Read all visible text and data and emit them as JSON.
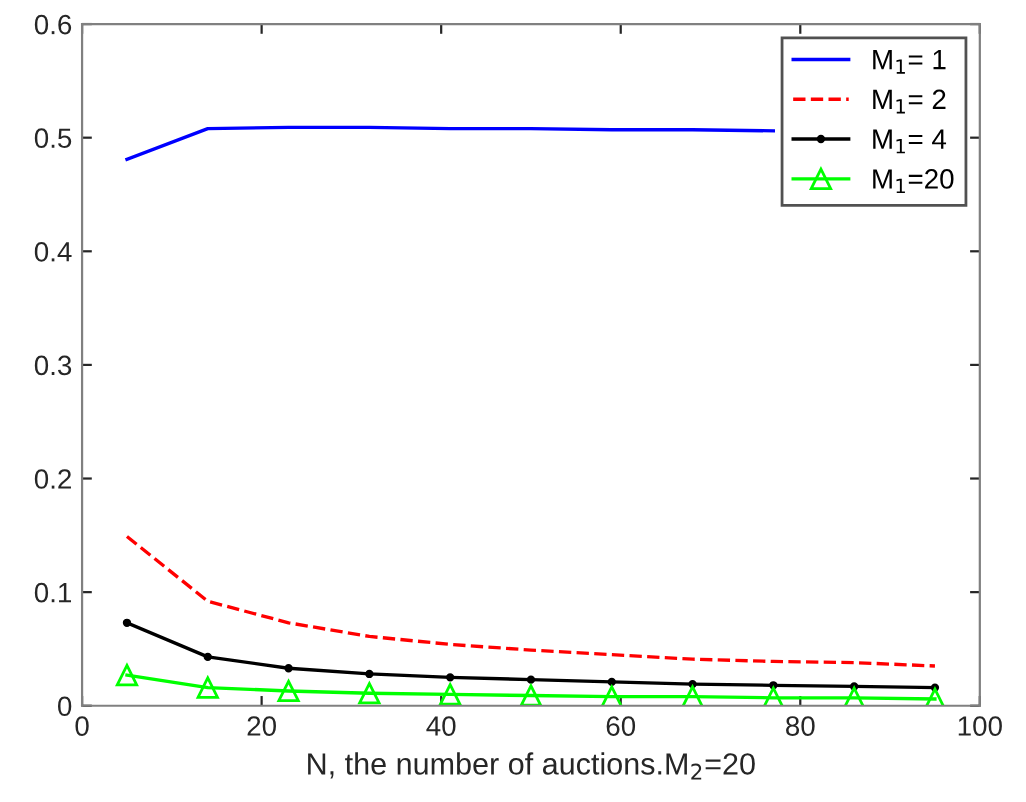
{
  "chart_data": {
    "type": "line",
    "xlabel": "N, the number of auctions.M$_{2}$=20",
    "x": [
      5,
      14,
      23,
      32,
      41,
      50,
      59,
      68,
      77,
      86,
      95
    ],
    "xlim": [
      0,
      100
    ],
    "xticks": [
      0,
      20,
      40,
      60,
      80,
      100
    ],
    "ylim": [
      0,
      0.6
    ],
    "yticks": [
      0,
      0.1,
      0.2,
      0.3,
      0.4,
      0.5,
      0.6
    ],
    "grid": false,
    "legend": "top right",
    "series": [
      {
        "name": "M$_{1}$= 1",
        "color": "#0000ff",
        "line_style": "solid",
        "marker": "none",
        "values": [
          0.481,
          0.508,
          0.509,
          0.509,
          0.508,
          0.508,
          0.507,
          0.507,
          0.506,
          null,
          null
        ]
      },
      {
        "name": "M$_{1}$= 2",
        "color": "#ff0000",
        "line_style": "dashed",
        "marker": "none",
        "values": [
          0.149,
          0.092,
          0.073,
          0.061,
          0.054,
          0.049,
          0.045,
          0.041,
          0.039,
          0.038,
          0.035
        ]
      },
      {
        "name": "M$_{1}$= 4",
        "color": "#000000",
        "line_style": "solid",
        "marker": "point",
        "values": [
          0.073,
          0.043,
          0.033,
          0.028,
          0.025,
          0.023,
          0.021,
          0.019,
          0.018,
          0.017,
          0.016
        ]
      },
      {
        "name": "M$_{1}$=20",
        "color": "#00ff00",
        "line_style": "solid",
        "marker": "triangle",
        "values": [
          0.027,
          0.016,
          0.013,
          0.011,
          0.01,
          0.009,
          0.008,
          0.008,
          0.007,
          0.007,
          0.006
        ]
      }
    ]
  }
}
